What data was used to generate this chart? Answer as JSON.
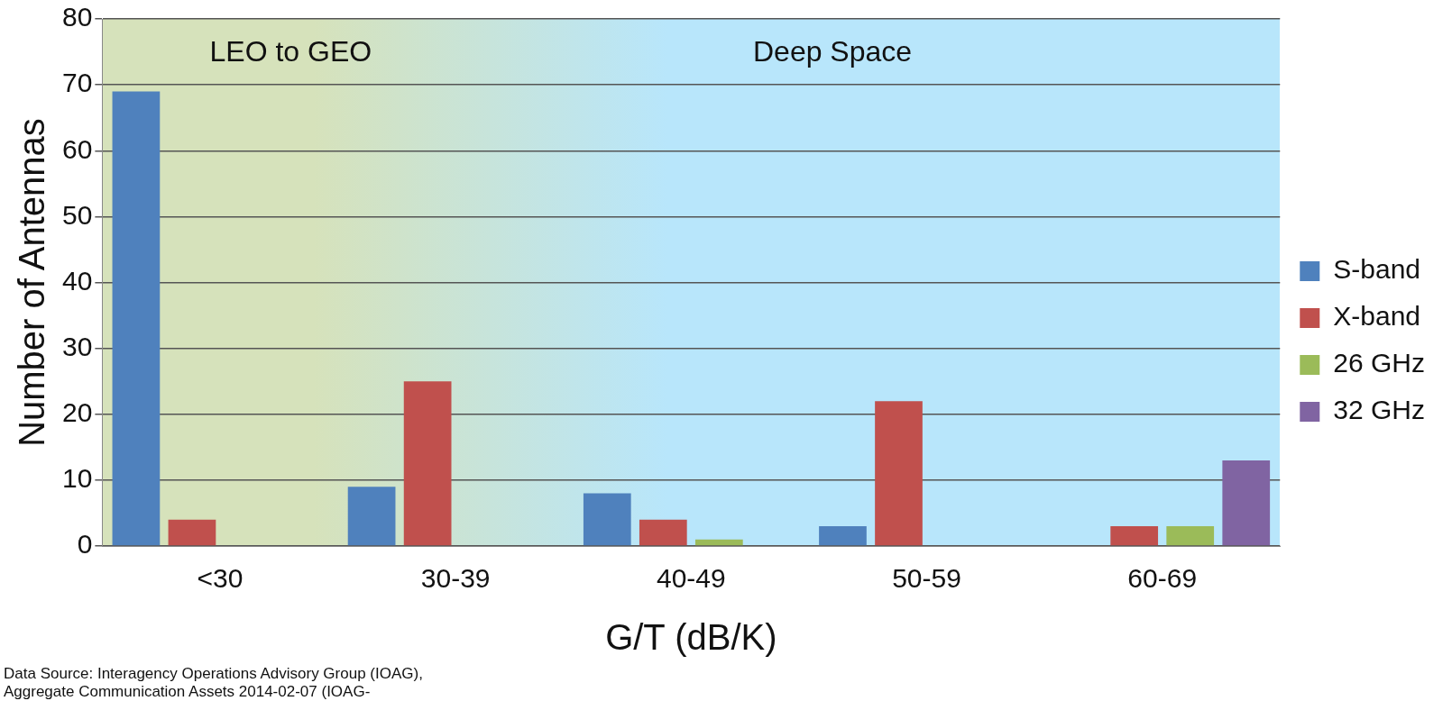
{
  "chart_data": {
    "type": "bar",
    "xlabel": "G/T (dB/K)",
    "ylabel": "Number of Antennas",
    "categories": [
      "<30",
      "30-39",
      "40-49",
      "50-59",
      "60-69"
    ],
    "series": [
      {
        "name": "S-band",
        "color": "#4f81bd",
        "values": [
          69,
          9,
          8,
          3,
          null
        ]
      },
      {
        "name": "X-band",
        "color": "#c0504d",
        "values": [
          4,
          25,
          4,
          22,
          3
        ]
      },
      {
        "name": "26 GHz",
        "color": "#9bbb59",
        "values": [
          null,
          null,
          1,
          null,
          3
        ]
      },
      {
        "name": "32 GHz",
        "color": "#8064a2",
        "values": [
          null,
          null,
          null,
          null,
          13
        ]
      }
    ],
    "ylim": [
      0,
      80
    ],
    "yticks": [
      0,
      10,
      20,
      30,
      40,
      50,
      60,
      70,
      80
    ],
    "grid": "y",
    "legend": "right",
    "annotations": [
      "LEO to GEO",
      "Deep Space",
      "Data Source:  Interagency Operations Advisory Group (IOAG), Aggregate Communication Assets 2014-02-07 (IOAG-"
    ]
  }
}
